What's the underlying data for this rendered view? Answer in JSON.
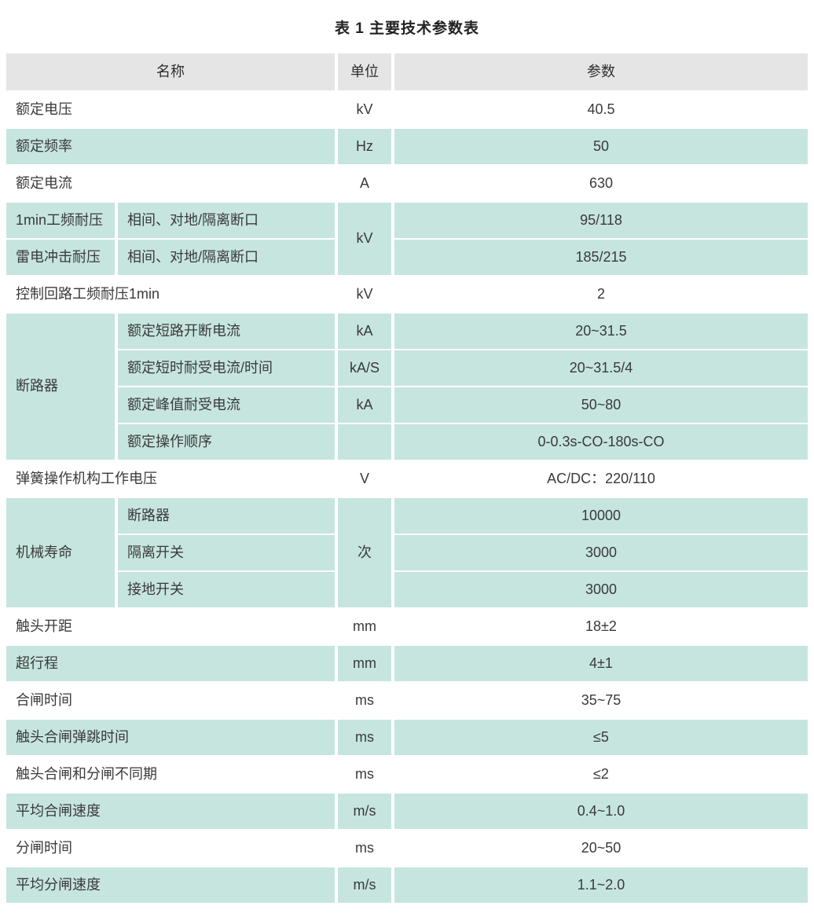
{
  "title": "表 1 主要技术参数表",
  "table": {
    "colors": {
      "row_teal": "#c6e5de",
      "header_gray": "#e6e5e5",
      "text": "#3a3a3a"
    },
    "header": {
      "name": "名称",
      "unit": "单位",
      "param": "参数"
    },
    "cells": [
      {
        "r": 1,
        "c": 1,
        "cs": 2,
        "text": "名称",
        "bg": "gray",
        "align": "center",
        "name": "header-name"
      },
      {
        "r": 1,
        "c": 3,
        "text": "单位",
        "bg": "gray",
        "align": "center",
        "name": "header-unit"
      },
      {
        "r": 1,
        "c": 4,
        "text": "参数",
        "bg": "gray",
        "align": "center",
        "name": "header-param"
      },
      {
        "r": 2,
        "c": 1,
        "cs": 2,
        "text": "额定电压",
        "bg": "white",
        "align": "left",
        "name": "cell-name"
      },
      {
        "r": 2,
        "c": 3,
        "text": "kV",
        "bg": "white",
        "align": "center",
        "name": "cell-unit"
      },
      {
        "r": 2,
        "c": 4,
        "text": "40.5",
        "bg": "white",
        "align": "center",
        "name": "cell-value"
      },
      {
        "r": 3,
        "c": 1,
        "cs": 2,
        "text": "额定频率",
        "bg": "teal",
        "align": "left",
        "name": "cell-name"
      },
      {
        "r": 3,
        "c": 3,
        "text": "Hz",
        "bg": "teal",
        "align": "center",
        "name": "cell-unit"
      },
      {
        "r": 3,
        "c": 4,
        "text": "50",
        "bg": "teal",
        "align": "center",
        "name": "cell-value"
      },
      {
        "r": 4,
        "c": 1,
        "cs": 2,
        "text": "额定电流",
        "bg": "white",
        "align": "left",
        "name": "cell-name"
      },
      {
        "r": 4,
        "c": 3,
        "text": "A",
        "bg": "white",
        "align": "center",
        "name": "cell-unit"
      },
      {
        "r": 4,
        "c": 4,
        "text": "630",
        "bg": "white",
        "align": "center",
        "name": "cell-value"
      },
      {
        "r": 5,
        "c": 1,
        "text": "1min工频耐压",
        "bg": "teal",
        "align": "left",
        "name": "cell-name"
      },
      {
        "r": 5,
        "c": 2,
        "text": "相间、对地/隔离断口",
        "bg": "teal",
        "align": "left",
        "name": "cell-subname"
      },
      {
        "r": 5,
        "c": 3,
        "rs": 2,
        "text": "kV",
        "bg": "teal",
        "align": "center",
        "name": "cell-unit"
      },
      {
        "r": 5,
        "c": 4,
        "text": "95/118",
        "bg": "teal",
        "align": "center",
        "name": "cell-value"
      },
      {
        "r": 6,
        "c": 1,
        "text": "雷电冲击耐压",
        "bg": "teal",
        "align": "left",
        "name": "cell-name"
      },
      {
        "r": 6,
        "c": 2,
        "text": "相间、对地/隔离断口",
        "bg": "teal",
        "align": "left",
        "name": "cell-subname"
      },
      {
        "r": 6,
        "c": 4,
        "text": "185/215",
        "bg": "teal",
        "align": "center",
        "name": "cell-value"
      },
      {
        "r": 7,
        "c": 1,
        "cs": 2,
        "text": "控制回路工频耐压1min",
        "bg": "white",
        "align": "left",
        "name": "cell-name"
      },
      {
        "r": 7,
        "c": 3,
        "text": "kV",
        "bg": "white",
        "align": "center",
        "name": "cell-unit"
      },
      {
        "r": 7,
        "c": 4,
        "text": "2",
        "bg": "white",
        "align": "center",
        "name": "cell-value"
      },
      {
        "r": 8,
        "c": 1,
        "rs": 4,
        "text": "断路器",
        "bg": "teal",
        "align": "left",
        "name": "cell-name"
      },
      {
        "r": 8,
        "c": 2,
        "text": "额定短路开断电流",
        "bg": "teal",
        "align": "left",
        "name": "cell-subname"
      },
      {
        "r": 8,
        "c": 3,
        "text": "kA",
        "bg": "teal",
        "align": "center",
        "name": "cell-unit"
      },
      {
        "r": 8,
        "c": 4,
        "text": "20~31.5",
        "bg": "teal",
        "align": "center",
        "name": "cell-value"
      },
      {
        "r": 9,
        "c": 2,
        "text": "额定短时耐受电流/时间",
        "bg": "teal",
        "align": "left",
        "name": "cell-subname"
      },
      {
        "r": 9,
        "c": 3,
        "text": "kA/S",
        "bg": "teal",
        "align": "center",
        "name": "cell-unit"
      },
      {
        "r": 9,
        "c": 4,
        "text": "20~31.5/4",
        "bg": "teal",
        "align": "center",
        "name": "cell-value"
      },
      {
        "r": 10,
        "c": 2,
        "text": "额定峰值耐受电流",
        "bg": "teal",
        "align": "left",
        "name": "cell-subname"
      },
      {
        "r": 10,
        "c": 3,
        "text": "kA",
        "bg": "teal",
        "align": "center",
        "name": "cell-unit"
      },
      {
        "r": 10,
        "c": 4,
        "text": "50~80",
        "bg": "teal",
        "align": "center",
        "name": "cell-value"
      },
      {
        "r": 11,
        "c": 2,
        "text": "额定操作顺序",
        "bg": "teal",
        "align": "left",
        "name": "cell-subname"
      },
      {
        "r": 11,
        "c": 3,
        "text": "",
        "bg": "teal",
        "align": "center",
        "name": "cell-unit"
      },
      {
        "r": 11,
        "c": 4,
        "text": "0-0.3s-CO-180s-CO",
        "bg": "teal",
        "align": "center",
        "name": "cell-value"
      },
      {
        "r": 12,
        "c": 1,
        "cs": 2,
        "text": "弹簧操作机构工作电压",
        "bg": "white",
        "align": "left",
        "name": "cell-name"
      },
      {
        "r": 12,
        "c": 3,
        "text": "V",
        "bg": "white",
        "align": "center",
        "name": "cell-unit"
      },
      {
        "r": 12,
        "c": 4,
        "text": "AC/DC：220/110",
        "bg": "white",
        "align": "center",
        "name": "cell-value"
      },
      {
        "r": 13,
        "c": 1,
        "rs": 3,
        "text": "机械寿命",
        "bg": "teal",
        "align": "left",
        "name": "cell-name"
      },
      {
        "r": 13,
        "c": 2,
        "text": "断路器",
        "bg": "teal",
        "align": "left",
        "name": "cell-subname"
      },
      {
        "r": 13,
        "c": 3,
        "rs": 3,
        "text": "次",
        "bg": "teal",
        "align": "center",
        "name": "cell-unit"
      },
      {
        "r": 13,
        "c": 4,
        "text": "10000",
        "bg": "teal",
        "align": "center",
        "name": "cell-value"
      },
      {
        "r": 14,
        "c": 2,
        "text": "隔离开关",
        "bg": "teal",
        "align": "left",
        "name": "cell-subname"
      },
      {
        "r": 14,
        "c": 4,
        "text": "3000",
        "bg": "teal",
        "align": "center",
        "name": "cell-value"
      },
      {
        "r": 15,
        "c": 2,
        "text": "接地开关",
        "bg": "teal",
        "align": "left",
        "name": "cell-subname"
      },
      {
        "r": 15,
        "c": 4,
        "text": "3000",
        "bg": "teal",
        "align": "center",
        "name": "cell-value"
      },
      {
        "r": 16,
        "c": 1,
        "cs": 2,
        "text": "触头开距",
        "bg": "white",
        "align": "left",
        "name": "cell-name"
      },
      {
        "r": 16,
        "c": 3,
        "text": "mm",
        "bg": "white",
        "align": "center",
        "name": "cell-unit"
      },
      {
        "r": 16,
        "c": 4,
        "text": "18±2",
        "bg": "white",
        "align": "center",
        "name": "cell-value"
      },
      {
        "r": 17,
        "c": 1,
        "cs": 2,
        "text": "超行程",
        "bg": "teal",
        "align": "left",
        "name": "cell-name"
      },
      {
        "r": 17,
        "c": 3,
        "text": "mm",
        "bg": "teal",
        "align": "center",
        "name": "cell-unit"
      },
      {
        "r": 17,
        "c": 4,
        "text": "4±1",
        "bg": "teal",
        "align": "center",
        "name": "cell-value"
      },
      {
        "r": 18,
        "c": 1,
        "cs": 2,
        "text": "合闸时间",
        "bg": "white",
        "align": "left",
        "name": "cell-name"
      },
      {
        "r": 18,
        "c": 3,
        "text": "ms",
        "bg": "white",
        "align": "center",
        "name": "cell-unit"
      },
      {
        "r": 18,
        "c": 4,
        "text": "35~75",
        "bg": "white",
        "align": "center",
        "name": "cell-value"
      },
      {
        "r": 19,
        "c": 1,
        "cs": 2,
        "text": "触头合闸弹跳时间",
        "bg": "teal",
        "align": "left",
        "name": "cell-name"
      },
      {
        "r": 19,
        "c": 3,
        "text": "ms",
        "bg": "teal",
        "align": "center",
        "name": "cell-unit"
      },
      {
        "r": 19,
        "c": 4,
        "text": "≤5",
        "bg": "teal",
        "align": "center",
        "name": "cell-value"
      },
      {
        "r": 20,
        "c": 1,
        "cs": 2,
        "text": "触头合闸和分闸不同期",
        "bg": "white",
        "align": "left",
        "name": "cell-name"
      },
      {
        "r": 20,
        "c": 3,
        "text": "ms",
        "bg": "white",
        "align": "center",
        "name": "cell-unit"
      },
      {
        "r": 20,
        "c": 4,
        "text": "≤2",
        "bg": "white",
        "align": "center",
        "name": "cell-value"
      },
      {
        "r": 21,
        "c": 1,
        "cs": 2,
        "text": "平均合闸速度",
        "bg": "teal",
        "align": "left",
        "name": "cell-name"
      },
      {
        "r": 21,
        "c": 3,
        "text": "m/s",
        "bg": "teal",
        "align": "center",
        "name": "cell-unit"
      },
      {
        "r": 21,
        "c": 4,
        "text": "0.4~1.0",
        "bg": "teal",
        "align": "center",
        "name": "cell-value"
      },
      {
        "r": 22,
        "c": 1,
        "cs": 2,
        "text": "分闸时间",
        "bg": "white",
        "align": "left",
        "name": "cell-name"
      },
      {
        "r": 22,
        "c": 3,
        "text": "ms",
        "bg": "white",
        "align": "center",
        "name": "cell-unit"
      },
      {
        "r": 22,
        "c": 4,
        "text": "20~50",
        "bg": "white",
        "align": "center",
        "name": "cell-value"
      },
      {
        "r": 23,
        "c": 1,
        "cs": 2,
        "text": "平均分闸速度",
        "bg": "teal",
        "align": "left",
        "name": "cell-name"
      },
      {
        "r": 23,
        "c": 3,
        "text": "m/s",
        "bg": "teal",
        "align": "center",
        "name": "cell-unit"
      },
      {
        "r": 23,
        "c": 4,
        "text": "1.1~2.0",
        "bg": "teal",
        "align": "center",
        "name": "cell-value"
      }
    ]
  }
}
